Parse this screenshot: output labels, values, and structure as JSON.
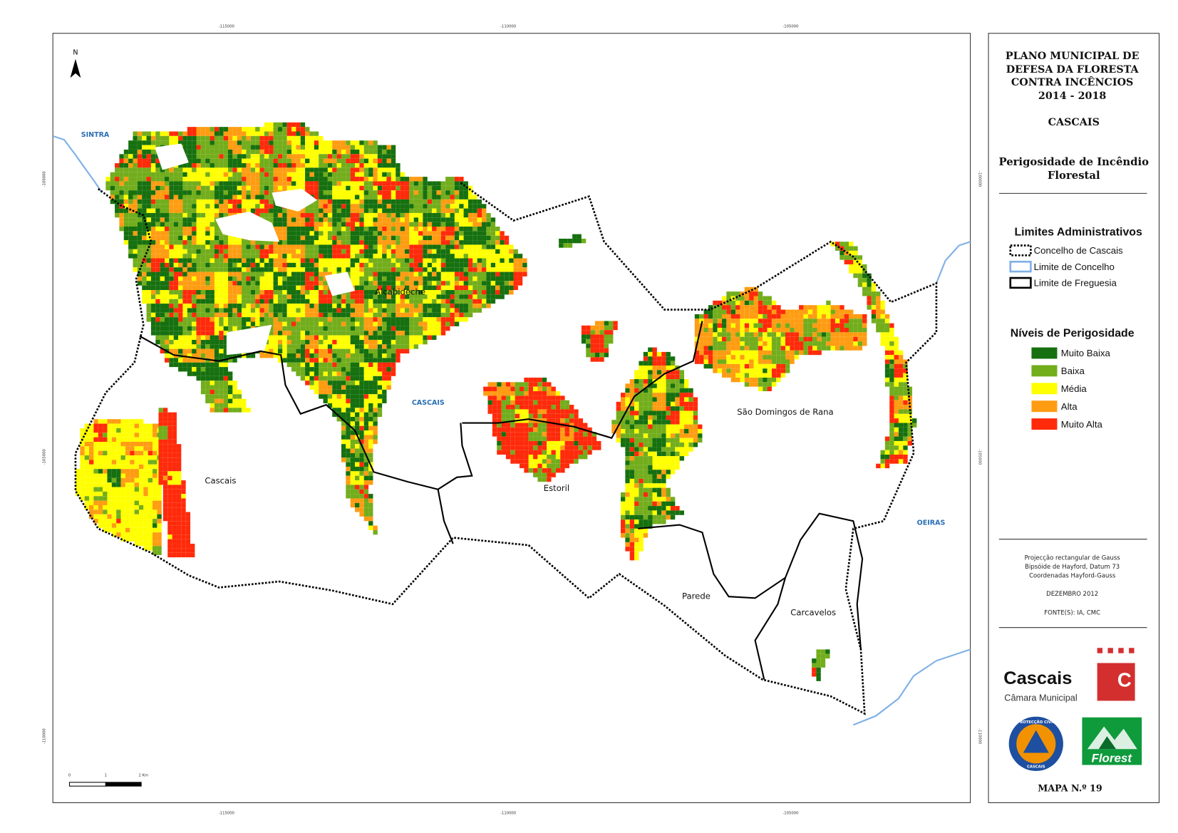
{
  "map": {
    "north": "N",
    "coordinates": {
      "top": [
        "-115000",
        "-110000",
        "-105000"
      ],
      "bottom": [
        "-115000",
        "-110000",
        "-105000"
      ],
      "left": [
        "-100000",
        "-105000",
        "-110000"
      ],
      "right": [
        "-100000",
        "-105000",
        "-110000"
      ]
    },
    "scale_bar": [
      "0",
      "1",
      "2 Km"
    ],
    "places": {
      "sintra": "SINTRA",
      "alcabideche": "Alcabideche",
      "cascais_municipality": "CASCAIS",
      "cascais": "Cascais",
      "estoril": "Estoril",
      "sao_domingos": "São Domingos de Rana",
      "oeiras": "OEIRAS",
      "parede": "Parede",
      "carcavelos": "Carcavelos"
    }
  },
  "panel": {
    "title": [
      "PLANO MUNICIPAL DE",
      "DEFESA DA FLORESTA",
      "CONTRA INCÊNCIOS",
      "2014 - 2018"
    ],
    "municipality": "CASCAIS",
    "subject": [
      "Perigosidade de Incêndio",
      "Florestal"
    ],
    "admin_limits": {
      "title": "Limites Administrativos",
      "items": [
        "Concelho de Cascais",
        "Limite de Concelho",
        "Limite de Freguesia"
      ]
    },
    "hazard_levels": {
      "title": "Níveis de Perigosidade",
      "items": [
        {
          "label": "Muito Baixa",
          "color": "#16700f"
        },
        {
          "label": "Baixa",
          "color": "#72ad1c"
        },
        {
          "label": "Média",
          "color": "#ffff00"
        },
        {
          "label": "Alta",
          "color": "#ff9c12"
        },
        {
          "label": "Muito Alta",
          "color": "#ff2a0a"
        }
      ]
    },
    "projection": [
      "Projecção rectangular de Gauss",
      "Bipsóide de Hayford, Datum 73",
      "Coordenadas Hayford-Gauss"
    ],
    "date": "DEZEMBRO 2012",
    "sources": "FONTE(S): IA, CMC",
    "logos": {
      "cascais": "Cascais",
      "cascais_sub": "Câmara Municipal",
      "cascais_mark": "C",
      "civil_top": "PROTECÇÃO CIVIL",
      "civil_bottom": "CASCAIS",
      "florest": "Florest"
    },
    "map_number": "MAPA N.º 19"
  }
}
